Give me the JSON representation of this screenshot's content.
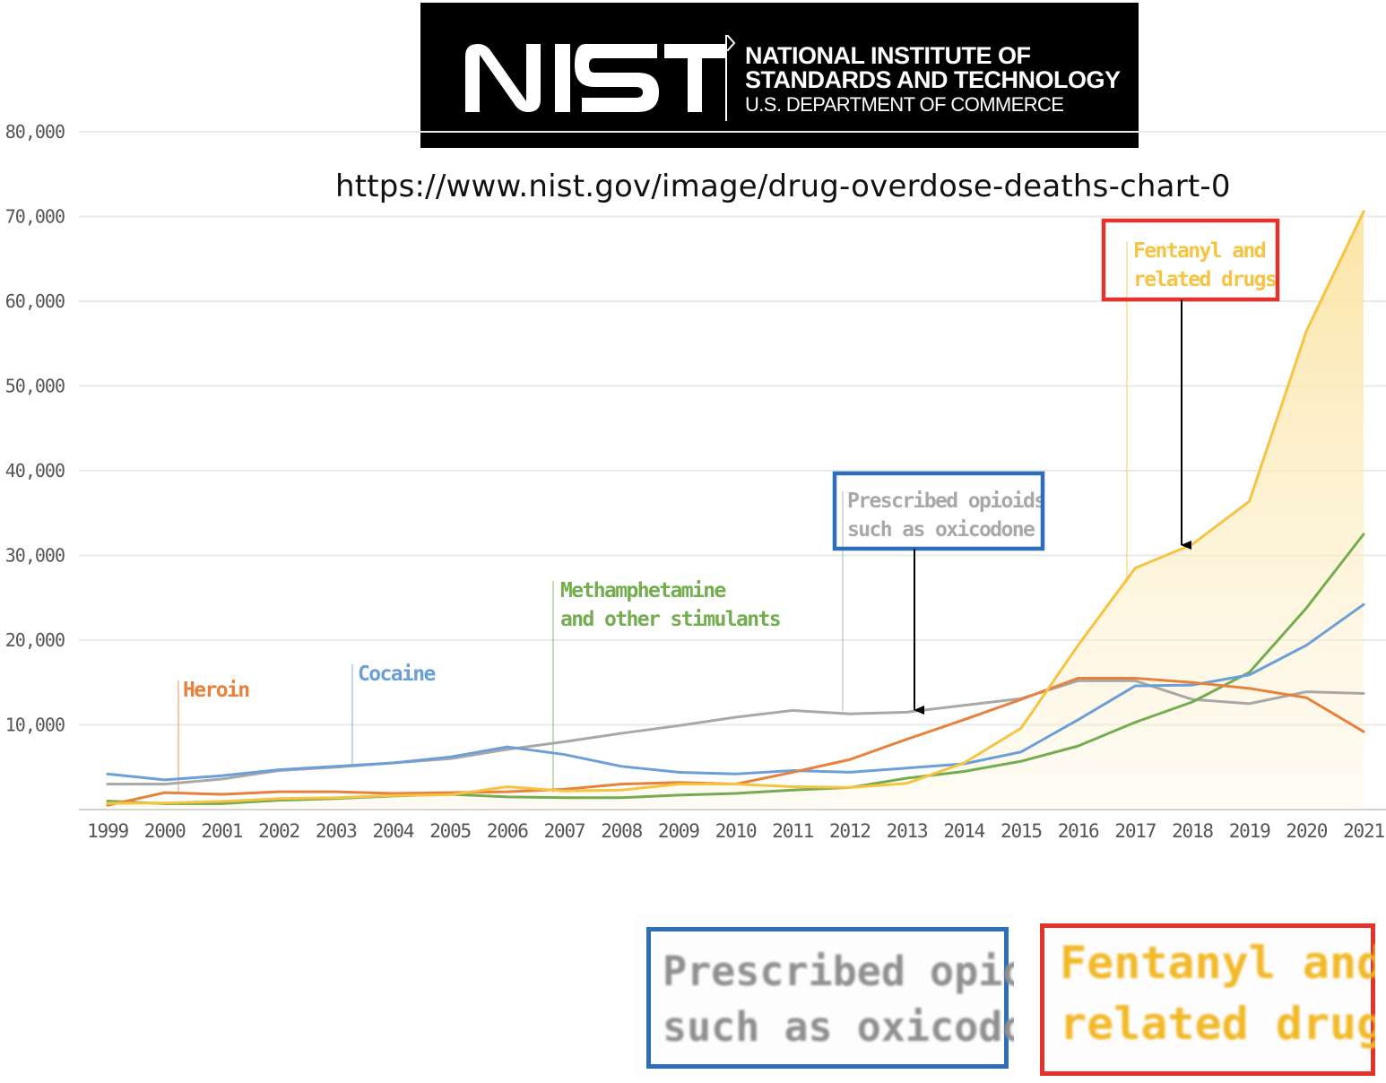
{
  "logo": {
    "wordmark": "NIST",
    "org_line1": "NATIONAL INSTITUTE OF",
    "org_line2": "STANDARDS AND TECHNOLOGY",
    "org_line3": "U.S. DEPARTMENT OF COMMERCE"
  },
  "source_url": "https://www.nist.gov/image/drug-overdose-deaths-chart-0",
  "colors": {
    "fentanyl": "#f6c342",
    "fentanyl_fill": "#fbe6a6",
    "prescribed": "#a8a8a8",
    "meth": "#74ad4f",
    "cocaine": "#6a9fd8",
    "heroin": "#e8813c",
    "blue_box": "#2e6dba",
    "red_box": "#e3332a",
    "grid": "#e9e9e9",
    "tick": "#555555"
  },
  "chart_data": {
    "type": "line",
    "x": [
      1999,
      2000,
      2001,
      2002,
      2003,
      2004,
      2005,
      2006,
      2007,
      2008,
      2009,
      2010,
      2011,
      2012,
      2013,
      2014,
      2015,
      2016,
      2017,
      2018,
      2019,
      2020,
      2021
    ],
    "x_tick_labels": [
      "1999",
      "2000",
      "2001",
      "2002",
      "2003",
      "2004",
      "2005",
      "2006",
      "2007",
      "2008",
      "2009",
      "2010",
      "2011",
      "2012",
      "2013",
      "2014",
      "2015",
      "2016",
      "2017",
      "2018",
      "2019",
      "2020",
      "2021"
    ],
    "y_tick_values": [
      10000,
      20000,
      30000,
      40000,
      50000,
      60000,
      70000,
      80000
    ],
    "y_tick_labels": [
      "10,000",
      "20,000",
      "30,000",
      "40,000",
      "50,000",
      "60,000",
      "70,000",
      "80,000"
    ],
    "ylim": [
      0,
      80000
    ],
    "grid": true,
    "title": "",
    "xlabel": "",
    "ylabel": "",
    "series": [
      {
        "key": "fentanyl",
        "name": "Fentanyl and related drugs",
        "label_lines": [
          "Fentanyl and",
          "related drugs"
        ],
        "area": true,
        "values": [
          730,
          780,
          960,
          1300,
          1400,
          1660,
          1740,
          2700,
          2200,
          2300,
          3000,
          3000,
          2700,
          2600,
          3100,
          5500,
          9600,
          19400,
          28500,
          31300,
          36400,
          56500,
          70600
        ]
      },
      {
        "key": "prescribed",
        "name": "Prescribed opioids such as oxicodone",
        "label_lines": [
          "Prescribed opioids",
          "such as oxicodone"
        ],
        "values": [
          3000,
          3000,
          3600,
          4600,
          5000,
          5500,
          6000,
          7100,
          8000,
          9000,
          9900,
          10900,
          11700,
          11300,
          11500,
          12300,
          13100,
          15200,
          15200,
          13000,
          12500,
          13900,
          13700
        ]
      },
      {
        "key": "meth",
        "name": "Methamphetamine and other stimulants",
        "label_lines": [
          "Methamphetamine",
          "and other stimulants"
        ],
        "values": [
          1000,
          700,
          700,
          1100,
          1300,
          1600,
          1800,
          1500,
          1400,
          1400,
          1700,
          1900,
          2300,
          2600,
          3700,
          4500,
          5700,
          7500,
          10300,
          12700,
          16200,
          23800,
          32500
        ]
      },
      {
        "key": "cocaine",
        "name": "Cocaine",
        "label_lines": [
          "Cocaine"
        ],
        "values": [
          4200,
          3500,
          4000,
          4700,
          5100,
          5500,
          6200,
          7400,
          6500,
          5100,
          4400,
          4200,
          4600,
          4400,
          4900,
          5400,
          6800,
          10600,
          14600,
          14700,
          15900,
          19400,
          24200
        ]
      },
      {
        "key": "heroin",
        "name": "Heroin",
        "label_lines": [
          "Heroin"
        ],
        "values": [
          500,
          2000,
          1800,
          2100,
          2100,
          1900,
          2000,
          2100,
          2400,
          3000,
          3200,
          3000,
          4400,
          5900,
          8300,
          10600,
          13000,
          15500,
          15500,
          15000,
          14300,
          13200,
          9200
        ]
      }
    ],
    "annotations": [
      {
        "key": "heroin",
        "text": "Heroin"
      },
      {
        "key": "cocaine",
        "text": "Cocaine"
      },
      {
        "key": "meth",
        "text_lines": [
          "Methamphetamine",
          "and other stimulants"
        ]
      },
      {
        "key": "prescribed",
        "text_lines": [
          "Prescribed opioids",
          "such as oxicodone"
        ],
        "highlight": "blue_box",
        "arrow_to_year": 2013
      },
      {
        "key": "fentanyl",
        "text_lines": [
          "Fentanyl and",
          "related drugs"
        ],
        "highlight": "red_box",
        "arrow_to_year": 2018
      }
    ]
  },
  "zoom_insets": {
    "prescribed": {
      "lines": [
        "Prescribed opioids",
        "such as oxicodone"
      ]
    },
    "fentanyl": {
      "lines": [
        "Fentanyl and",
        "related drugs"
      ]
    }
  }
}
